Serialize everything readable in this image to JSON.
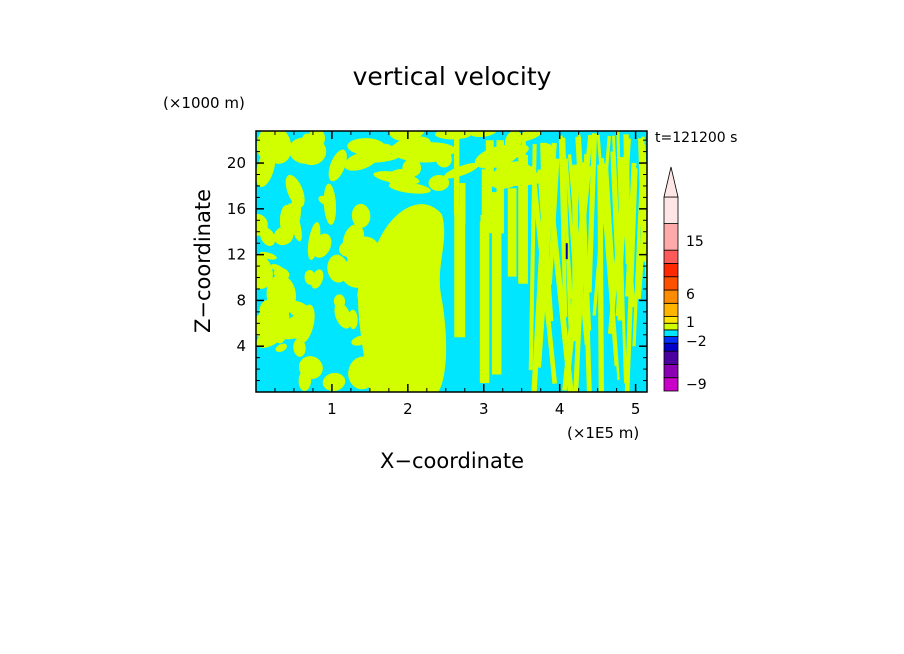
{
  "chart_data": {
    "type": "heatmap",
    "title": "vertical velocity",
    "time_label": "t=121200 s",
    "x_axis": {
      "label": "X−coordinate",
      "unit_label": "(×1E5 m)",
      "ticks": [
        1,
        2,
        3,
        4,
        5
      ],
      "range": [
        0,
        5.15
      ]
    },
    "y_axis": {
      "label": "Z−coordinate",
      "unit_label": "(×1000 m)",
      "ticks": [
        4,
        8,
        12,
        16,
        20
      ],
      "range": [
        0,
        22.8
      ]
    },
    "colorbar": {
      "tick_labels": [
        "15",
        "6",
        "1",
        "−2",
        "−9"
      ],
      "colors": [
        "#c800c8",
        "#8c00b4",
        "#4b00a0",
        "#0000c8",
        "#0032ff",
        "#00e6ff",
        "#d2ff00",
        "#ffe600",
        "#ffb400",
        "#ff8c00",
        "#ff5000",
        "#ff2800",
        "#ff5a5a",
        "#ffaaaa",
        "#ffe6e6"
      ]
    },
    "field_colors": {
      "negative": "#00e6ff",
      "positive": "#d2ff00",
      "strong_negative": "#0000c8"
    }
  }
}
